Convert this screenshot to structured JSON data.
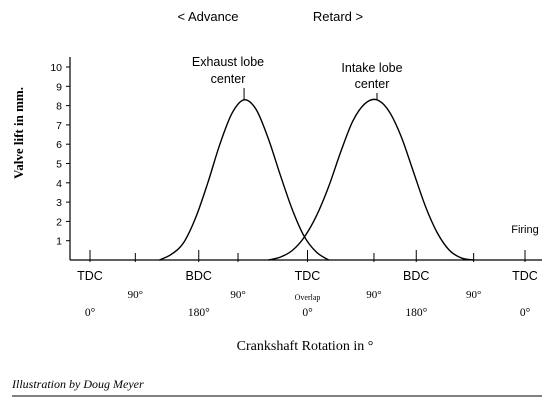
{
  "chart_data": {
    "type": "line",
    "ylabel": "Valve lift in mm.",
    "xlabel": "Crankshaft Rotation in °",
    "ylim": [
      0,
      10
    ],
    "y_ticks": [
      "1",
      "2",
      "3",
      "4",
      "5",
      "6",
      "7",
      "8",
      "9",
      "10"
    ],
    "x_ticks": [
      {
        "label": "TDC",
        "deg": 0
      },
      {
        "label": "BDC",
        "deg": 180
      },
      {
        "label": "TDC",
        "deg": 360
      },
      {
        "label": "BDC",
        "deg": 540
      },
      {
        "label": "TDC",
        "deg": 720
      }
    ],
    "deg_labels": [
      {
        "text": "0°",
        "deg": 0
      },
      {
        "text": "180°",
        "deg": 180
      },
      {
        "text": "0°",
        "deg": 360
      },
      {
        "text": "180°",
        "deg": 540
      },
      {
        "text": "0°",
        "deg": 720
      }
    ],
    "minor_labels": [
      {
        "text": "90°",
        "deg": 75
      },
      {
        "text": "90°",
        "deg": 245
      },
      {
        "text": "Overlap",
        "deg": 360
      },
      {
        "text": "90°",
        "deg": 470
      },
      {
        "text": "90°",
        "deg": 635
      }
    ],
    "x_marks": [
      75,
      245,
      470,
      635
    ],
    "series": [
      {
        "name": "Exhaust lobe center",
        "x": [
          115,
          135,
          155,
          175,
          195,
          215,
          235,
          255,
          275,
          295,
          315,
          335,
          355,
          375,
          395
        ],
        "y": [
          0.0,
          0.3,
          0.9,
          2.2,
          4.0,
          6.0,
          7.6,
          8.3,
          7.8,
          6.3,
          4.4,
          2.6,
          1.2,
          0.4,
          0.0
        ]
      },
      {
        "name": "Intake lobe center",
        "x": [
          295,
          315,
          335,
          355,
          375,
          395,
          415,
          435,
          455,
          475,
          495,
          515,
          535,
          555,
          575,
          595,
          615,
          635
        ],
        "y": [
          0.0,
          0.15,
          0.5,
          1.2,
          2.3,
          3.8,
          5.6,
          7.2,
          8.1,
          8.3,
          7.7,
          6.4,
          4.6,
          2.8,
          1.4,
          0.5,
          0.1,
          0.0
        ]
      }
    ],
    "annotations": {
      "advance": "< Advance",
      "retard": "Retard >",
      "exhaust": [
        "Exhaust lobe",
        "center"
      ],
      "intake": [
        "Intake lobe",
        "center"
      ],
      "firing": "Firing",
      "exhaust_peak_deg": 255,
      "intake_peak_deg": 475,
      "peak_lift": 8.3
    },
    "credit": "Illustration by Doug Meyer"
  }
}
